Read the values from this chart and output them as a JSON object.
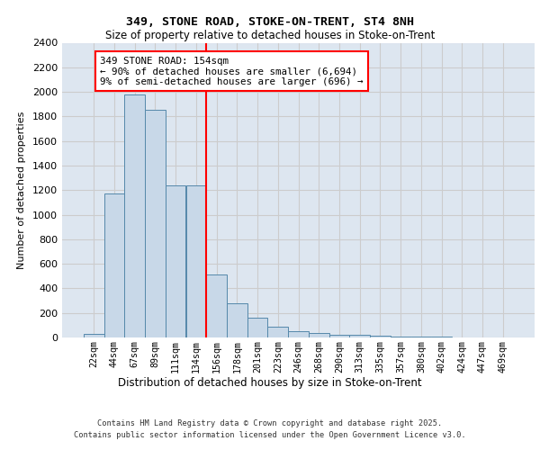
{
  "title1": "349, STONE ROAD, STOKE-ON-TRENT, ST4 8NH",
  "title2": "Size of property relative to detached houses in Stoke-on-Trent",
  "xlabel": "Distribution of detached houses by size in Stoke-on-Trent",
  "ylabel": "Number of detached properties",
  "categories": [
    "22sqm",
    "44sqm",
    "67sqm",
    "89sqm",
    "111sqm",
    "134sqm",
    "156sqm",
    "178sqm",
    "201sqm",
    "223sqm",
    "246sqm",
    "268sqm",
    "290sqm",
    "313sqm",
    "335sqm",
    "357sqm",
    "380sqm",
    "402sqm",
    "424sqm",
    "447sqm",
    "469sqm"
  ],
  "values": [
    30,
    1175,
    1975,
    1855,
    1240,
    1240,
    515,
    275,
    160,
    90,
    50,
    40,
    25,
    20,
    18,
    10,
    5,
    5,
    3,
    3,
    3
  ],
  "bar_color": "#c8d8e8",
  "bar_edge_color": "#5588aa",
  "vline_x_index": 6,
  "vline_color": "red",
  "annotation_text": "349 STONE ROAD: 154sqm\n← 90% of detached houses are smaller (6,694)\n9% of semi-detached houses are larger (696) →",
  "annotation_box_color": "red",
  "ylim": [
    0,
    2400
  ],
  "yticks": [
    0,
    200,
    400,
    600,
    800,
    1000,
    1200,
    1400,
    1600,
    1800,
    2000,
    2200,
    2400
  ],
  "grid_color": "#cccccc",
  "bg_color": "#dde6f0",
  "footer1": "Contains HM Land Registry data © Crown copyright and database right 2025.",
  "footer2": "Contains public sector information licensed under the Open Government Licence v3.0."
}
